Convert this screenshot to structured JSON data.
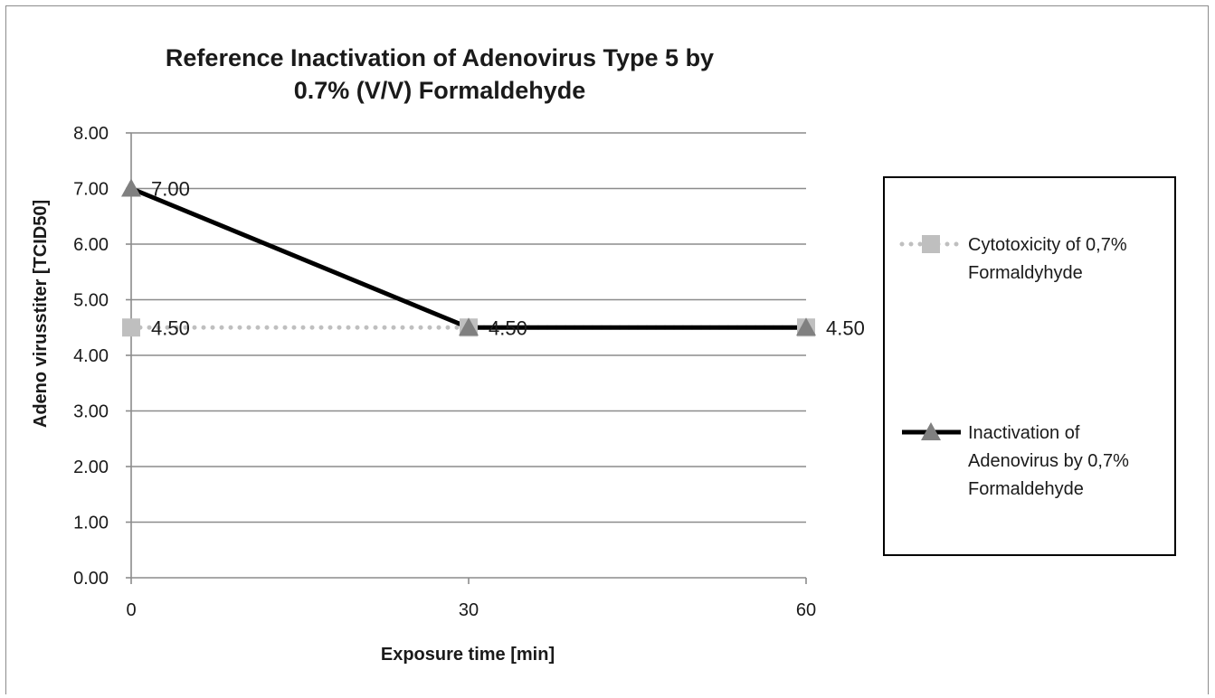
{
  "chart_data": {
    "type": "line",
    "title": [
      "Reference Inactivation of  Adenovirus Type 5 by",
      "0.7% (V/V) Formaldehyde"
    ],
    "xlabel": "Exposure time  [min]",
    "ylabel": "Adeno virusstiter  [TCID50]",
    "categories": [
      "0",
      "30",
      "60"
    ],
    "x": [
      0,
      30,
      60
    ],
    "ylim": [
      0,
      8
    ],
    "yticks": [
      "0.00",
      "1.00",
      "2.00",
      "3.00",
      "4.00",
      "5.00",
      "6.00",
      "7.00",
      "8.00"
    ],
    "grid": true,
    "legend_position": "right",
    "series": [
      {
        "name": [
          "Cytotoxicity of 0,7%",
          "Formaldyhyde"
        ],
        "values": [
          4.5,
          4.5,
          4.5
        ],
        "color": "#bfbfbf",
        "marker": "square",
        "line_style": "dotted",
        "data_labels": [
          "4.50",
          "",
          ""
        ]
      },
      {
        "name": [
          "Inactivation of",
          "Adenovirus by 0,7%",
          "Formaldehyde"
        ],
        "values": [
          7.0,
          4.5,
          4.5
        ],
        "color": "#000000",
        "marker": "triangle",
        "line_style": "solid",
        "data_labels": [
          "7.00",
          "4.50",
          "4.50"
        ]
      }
    ]
  }
}
